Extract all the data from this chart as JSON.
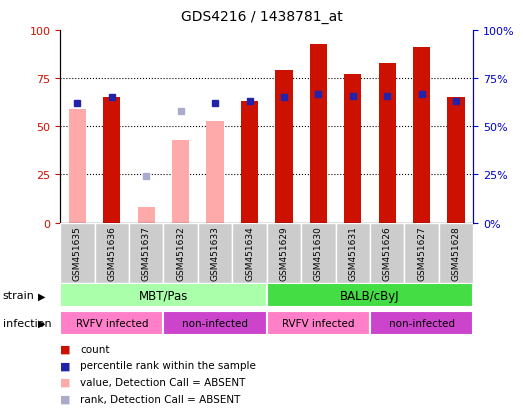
{
  "title": "GDS4216 / 1438781_at",
  "samples": [
    "GSM451635",
    "GSM451636",
    "GSM451637",
    "GSM451632",
    "GSM451633",
    "GSM451634",
    "GSM451629",
    "GSM451630",
    "GSM451631",
    "GSM451626",
    "GSM451627",
    "GSM451628"
  ],
  "red_bars": [
    null,
    65,
    null,
    null,
    null,
    63,
    79,
    93,
    77,
    83,
    91,
    65
  ],
  "pink_bars": [
    59,
    null,
    8,
    43,
    53,
    null,
    null,
    null,
    null,
    null,
    null,
    null
  ],
  "blue_squares": [
    62,
    65,
    null,
    null,
    62,
    63,
    65,
    67,
    66,
    66,
    67,
    63
  ],
  "light_blue_squares": [
    null,
    null,
    24,
    58,
    null,
    null,
    null,
    null,
    null,
    null,
    null,
    null
  ],
  "strain_groups": [
    {
      "label": "MBT/Pas",
      "start": 0,
      "end": 6,
      "color": "#AAFFAA"
    },
    {
      "label": "BALB/cByJ",
      "start": 6,
      "end": 12,
      "color": "#44DD44"
    }
  ],
  "infection_groups": [
    {
      "label": "RVFV infected",
      "start": 0,
      "end": 3,
      "color": "#FF80C8"
    },
    {
      "label": "non-infected",
      "start": 3,
      "end": 6,
      "color": "#CC44CC"
    },
    {
      "label": "RVFV infected",
      "start": 6,
      "end": 9,
      "color": "#FF80C8"
    },
    {
      "label": "non-infected",
      "start": 9,
      "end": 12,
      "color": "#CC44CC"
    }
  ],
  "ylim": [
    0,
    100
  ],
  "grid_values": [
    25,
    50,
    75
  ],
  "bar_width": 0.5,
  "red_color": "#CC1100",
  "pink_color": "#FFAAAA",
  "blue_color": "#2222AA",
  "light_blue_color": "#AAAACC",
  "tick_color_left": "#CC1100",
  "tick_color_right": "#0000CC",
  "sample_box_color": "#CCCCCC",
  "legend_items": [
    {
      "color": "#CC1100",
      "label": "count"
    },
    {
      "color": "#2222AA",
      "label": "percentile rank within the sample"
    },
    {
      "color": "#FFAAAA",
      "label": "value, Detection Call = ABSENT"
    },
    {
      "color": "#AAAACC",
      "label": "rank, Detection Call = ABSENT"
    }
  ]
}
